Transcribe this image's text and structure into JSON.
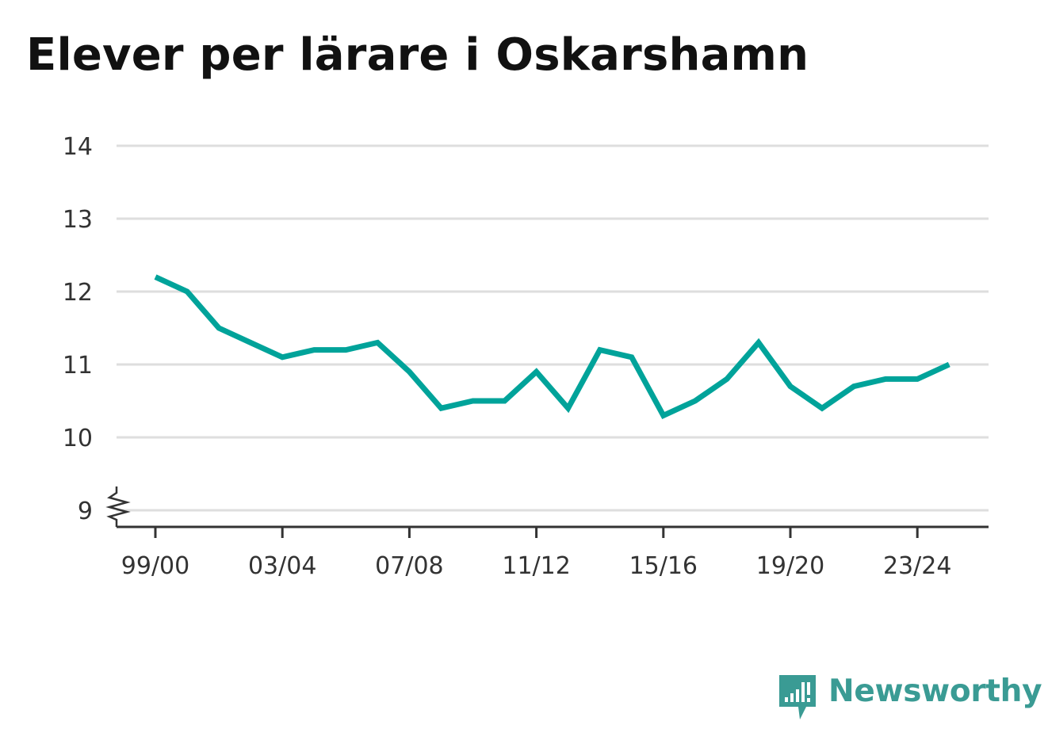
{
  "title": "Elever per lärare i Oskarshamn",
  "brand": {
    "name": "Newsworthy",
    "icon": "newsworthy-logo-icon",
    "color": "#3a9b94"
  },
  "chart_data": {
    "type": "line",
    "title": "Elever per lärare i Oskarshamn",
    "xlabel": "",
    "ylabel": "",
    "x": [
      "99/00",
      "00/01",
      "01/02",
      "02/03",
      "03/04",
      "04/05",
      "05/06",
      "06/07",
      "07/08",
      "08/09",
      "09/10",
      "10/11",
      "11/12",
      "12/13",
      "13/14",
      "14/15",
      "15/16",
      "16/17",
      "17/18",
      "18/19",
      "19/20",
      "20/21",
      "21/22",
      "22/23",
      "23/24",
      "24/25"
    ],
    "x_tick_labels": [
      "99/00",
      "03/04",
      "07/08",
      "11/12",
      "15/16",
      "19/20",
      "23/24"
    ],
    "y_tick_labels": [
      "9",
      "10",
      "11",
      "12",
      "13",
      "14"
    ],
    "ylim": [
      9,
      14
    ],
    "y_axis_break": true,
    "grid": true,
    "line_color": "#00a39a",
    "series": [
      {
        "values": [
          12.2,
          12.0,
          11.5,
          11.3,
          11.1,
          11.2,
          11.2,
          11.3,
          10.9,
          10.4,
          10.5,
          10.5,
          10.9,
          10.4,
          11.2,
          11.1,
          10.3,
          10.5,
          10.8,
          11.3,
          10.7,
          10.4,
          10.7,
          10.8,
          10.8,
          11.0
        ]
      }
    ]
  }
}
